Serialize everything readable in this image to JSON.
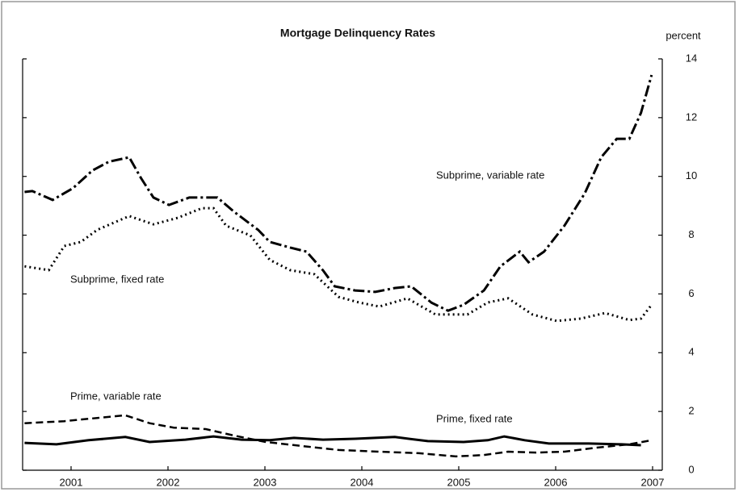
{
  "chart_data": {
    "type": "line",
    "title": "Mortgage Delinquency Rates",
    "y_axis_label": "percent",
    "xlim": [
      2000.5,
      2007.1
    ],
    "xticks": [
      2001,
      2002,
      2003,
      2004,
      2005,
      2006,
      2007
    ],
    "ylim": [
      0,
      14
    ],
    "yticks": [
      0,
      2,
      4,
      6,
      8,
      10,
      12,
      14
    ],
    "grid": false,
    "y_axis_side": "right",
    "series": [
      {
        "name": "Subprime, variable rate",
        "color": "#000000",
        "x": [
          2000.52,
          2000.6,
          2000.81,
          2001.02,
          2001.22,
          2001.39,
          2001.6,
          2001.72,
          2001.85,
          2002.01,
          2002.22,
          2002.51,
          2002.68,
          2002.93,
          2003.05,
          2003.26,
          2003.43,
          2003.6,
          2003.72,
          2003.93,
          2004.14,
          2004.34,
          2004.51,
          2004.72,
          2004.89,
          2005.05,
          2005.26,
          2005.43,
          2005.63,
          2005.72,
          2005.88,
          2006.09,
          2006.3,
          2006.47,
          2006.63,
          2006.76,
          2006.88,
          2006.99
        ],
        "values": [
          9.47,
          9.5,
          9.2,
          9.6,
          10.2,
          10.5,
          10.65,
          9.95,
          9.28,
          9.03,
          9.28,
          9.28,
          8.8,
          8.18,
          7.77,
          7.58,
          7.44,
          6.8,
          6.26,
          6.12,
          6.07,
          6.2,
          6.26,
          5.7,
          5.43,
          5.63,
          6.12,
          6.94,
          7.44,
          7.08,
          7.44,
          8.32,
          9.42,
          10.65,
          11.28,
          11.28,
          12.16,
          13.45
        ]
      },
      {
        "name": "Subprime, fixed rate",
        "color": "#000000",
        "x": [
          2000.52,
          2000.77,
          2000.93,
          2001.1,
          2001.27,
          2001.6,
          2001.85,
          2002.1,
          2002.35,
          2002.47,
          2002.6,
          2002.85,
          2003.05,
          2003.26,
          2003.51,
          2003.76,
          2003.97,
          2004.18,
          2004.47,
          2004.76,
          2005.09,
          2005.3,
          2005.51,
          2005.76,
          2006.01,
          2006.26,
          2006.51,
          2006.76,
          2006.88,
          2006.99
        ],
        "values": [
          6.94,
          6.81,
          7.63,
          7.77,
          8.18,
          8.65,
          8.37,
          8.59,
          8.92,
          8.92,
          8.32,
          7.99,
          7.16,
          6.81,
          6.67,
          5.9,
          5.71,
          5.57,
          5.85,
          5.3,
          5.3,
          5.71,
          5.85,
          5.3,
          5.08,
          5.16,
          5.35,
          5.11,
          5.16,
          5.63
        ]
      },
      {
        "name": "Prime, variable rate",
        "color": "#000000",
        "x": [
          2000.52,
          2000.93,
          2001.27,
          2001.56,
          2001.81,
          2002.06,
          2002.39,
          2002.68,
          2003.01,
          2003.39,
          2003.76,
          2004.18,
          2004.59,
          2004.97,
          2005.26,
          2005.51,
          2005.8,
          2006.09,
          2006.42,
          2006.76,
          2006.99
        ],
        "values": [
          1.6,
          1.67,
          1.78,
          1.87,
          1.6,
          1.45,
          1.4,
          1.18,
          0.96,
          0.82,
          0.69,
          0.63,
          0.58,
          0.47,
          0.52,
          0.63,
          0.6,
          0.63,
          0.77,
          0.88,
          1.02
        ]
      },
      {
        "name": "Prime, fixed rate",
        "color": "#000000",
        "x": [
          2000.52,
          2000.85,
          2001.18,
          2001.56,
          2001.81,
          2002.18,
          2002.47,
          2002.76,
          2003.05,
          2003.3,
          2003.6,
          2003.93,
          2004.34,
          2004.68,
          2005.05,
          2005.3,
          2005.47,
          2005.68,
          2005.93,
          2006.34,
          2006.68,
          2006.88
        ],
        "values": [
          0.93,
          0.88,
          1.02,
          1.13,
          0.96,
          1.04,
          1.15,
          1.04,
          1.02,
          1.1,
          1.04,
          1.07,
          1.13,
          0.99,
          0.96,
          1.02,
          1.15,
          1.02,
          0.91,
          0.91,
          0.88,
          0.85
        ]
      }
    ]
  }
}
